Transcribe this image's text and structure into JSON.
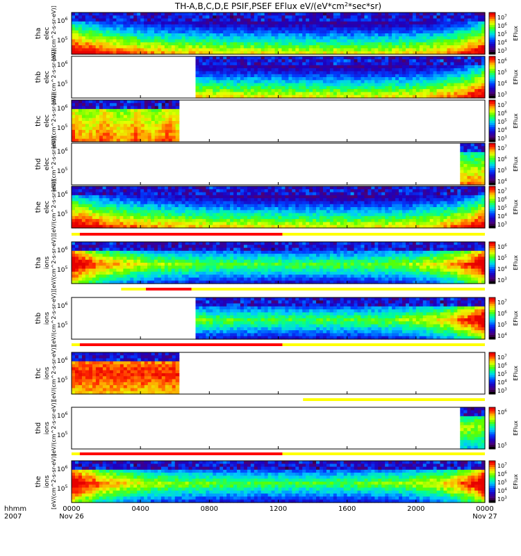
{
  "chart_data": {
    "type": "heatmap",
    "title": "TH-A,B,C,D,E PSIF,PSEF EFlux eV/(eV*cm",
    "title_sup": "2",
    "title_tail": "*sec*sr)",
    "x_ticks": [
      "0000",
      "0400",
      "0800",
      "1200",
      "1600",
      "2000",
      "0000"
    ],
    "x_dates": [
      "Nov 26",
      "Nov 27"
    ],
    "x_label_lines": [
      "hhmm",
      "2007"
    ],
    "y_units": "[eV/(cm^2-s-sr-eV)]",
    "y_ticks": [
      "10^6",
      "10^5"
    ],
    "panels": [
      {
        "probe": "tha",
        "species": "elec",
        "coverage": [
          0.0,
          1.0
        ],
        "cbar_ticks": [
          "10^7",
          "10^6",
          "10^5",
          "10^4",
          "10^3"
        ],
        "cbar_label": "EFlux"
      },
      {
        "probe": "thb",
        "species": "elec",
        "coverage": [
          0.3,
          1.0
        ],
        "cbar_ticks": [
          "10^6",
          "10^5",
          "10^4",
          "10^3"
        ],
        "cbar_label": "EFlux"
      },
      {
        "probe": "thc",
        "species": "elec",
        "coverage": [
          0.0,
          0.26
        ],
        "cbar_ticks": [
          "10^7",
          "10^6",
          "10^5",
          "10^4",
          "10^3"
        ],
        "cbar_label": "EFlux"
      },
      {
        "probe": "thd",
        "species": "elec",
        "coverage": [
          0.94,
          1.0
        ],
        "cbar_ticks": [
          "10^7",
          "10^6",
          "10^5",
          "10^4"
        ],
        "cbar_label": "EFlux"
      },
      {
        "probe": "the",
        "species": "elec",
        "coverage": [
          0.0,
          1.0
        ],
        "cbar_ticks": [
          "10^7",
          "10^6",
          "10^5",
          "10^4",
          "10^3"
        ],
        "cbar_label": "EFlux"
      },
      {
        "probe": "tha",
        "species": "ions",
        "coverage": [
          0.0,
          1.0
        ],
        "cbar_ticks": [
          "10^6",
          "10^5",
          "10^4",
          "10^3"
        ],
        "cbar_label": "EFlux"
      },
      {
        "probe": "thb",
        "species": "ions",
        "coverage": [
          0.3,
          1.0
        ],
        "cbar_ticks": [
          "10^7",
          "10^6",
          "10^5",
          "10^4"
        ],
        "cbar_label": "EFlux"
      },
      {
        "probe": "thc",
        "species": "ions",
        "coverage": [
          0.0,
          0.26
        ],
        "cbar_ticks": [
          "10^7",
          "10^6",
          "10^5",
          "10^4",
          "10^3"
        ],
        "cbar_label": "EFlux"
      },
      {
        "probe": "thd",
        "species": "ions",
        "coverage": [
          0.94,
          1.0
        ],
        "cbar_ticks": [
          "10^6",
          "10^5"
        ],
        "cbar_label": "EFlux"
      },
      {
        "probe": "the",
        "species": "ions",
        "coverage": [
          0.0,
          1.0
        ],
        "cbar_ticks": [
          "10^7",
          "10^6",
          "10^5",
          "10^4",
          "10^3"
        ],
        "cbar_label": "EFlux"
      }
    ],
    "mode_bars": [
      {
        "after_panel": 4,
        "yellow": [
          [
            0.0,
            1.0
          ]
        ],
        "red": [
          [
            0.02,
            0.51
          ]
        ]
      },
      {
        "after_panel": 5,
        "yellow": [
          [
            0.12,
            1.0
          ]
        ],
        "red": [
          [
            0.18,
            0.29
          ]
        ]
      },
      {
        "after_panel": 6,
        "yellow": [
          [
            0.0,
            1.0
          ]
        ],
        "red": [
          [
            0.02,
            0.51
          ]
        ]
      },
      {
        "after_panel": 7,
        "yellow": [
          [
            0.56,
            1.0
          ]
        ],
        "red": []
      },
      {
        "after_panel": 8,
        "yellow": [
          [
            0.0,
            1.0
          ]
        ],
        "red": [
          [
            0.02,
            0.51
          ]
        ]
      }
    ]
  }
}
